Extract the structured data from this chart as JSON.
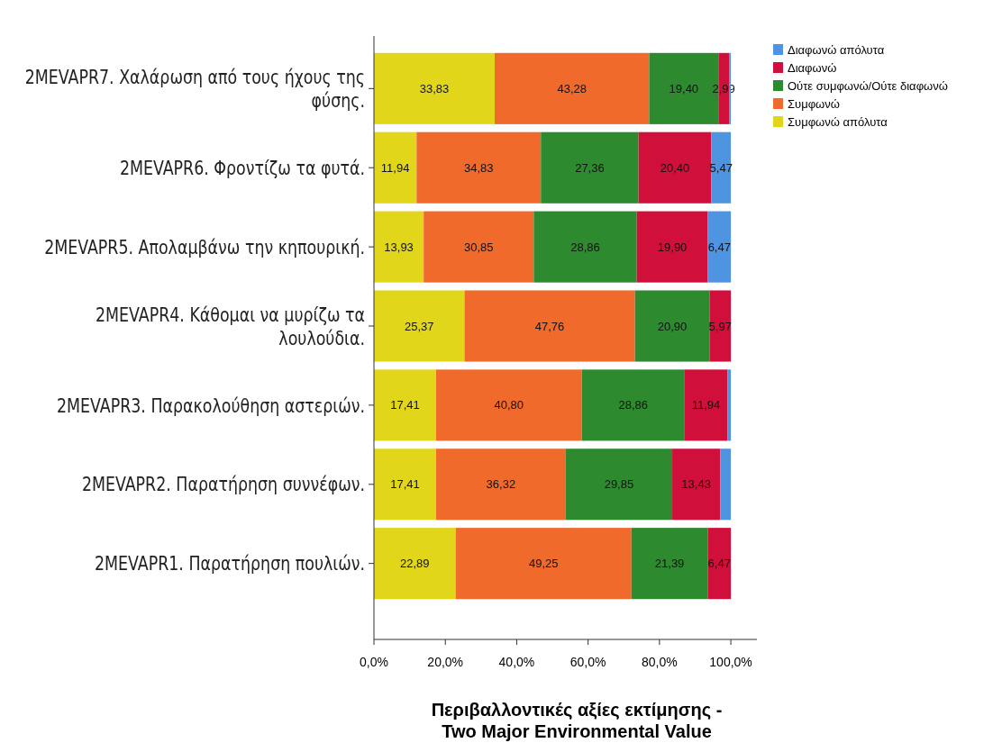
{
  "chart_data": {
    "type": "bar",
    "orientation": "horizontal",
    "stacked": true,
    "xlabel": "Περιβαλλοντικές αξίες εκτίμησης - Two Major Environmental Value",
    "categories": [
      "2MEVAPR7. Χαλάρωση από τους ήχους της φύσης.",
      "2MEVAPR6. Φροντίζω τα φυτά.",
      "2MEVAPR5. Απολαμβάνω την κηπουρική.",
      "2MEVAPR4. Κάθομαι να μυρίζω τα λουλούδια.",
      "2MEVAPR3. Παρακολούθηση αστεριών.",
      "2MEVAPR2. Παρατήρηση συννέφων.",
      "2MEVAPR1. Παρατήρηση πουλιών."
    ],
    "series": [
      {
        "name": "Συμφωνώ απόλυτα",
        "color": "#e2d61b",
        "values": [
          33.83,
          11.94,
          13.93,
          25.37,
          17.41,
          17.41,
          22.89
        ],
        "value_labels": [
          "33,83",
          "11,94",
          "13,93",
          "25,37",
          "17,41",
          "17,41",
          "22,89"
        ]
      },
      {
        "name": "Συμφωνώ",
        "color": "#f06a2c",
        "values": [
          43.28,
          34.83,
          30.85,
          47.76,
          40.8,
          36.32,
          49.25
        ],
        "value_labels": [
          "43,28",
          "34,83",
          "30,85",
          "47,76",
          "40,80",
          "36,32",
          "49,25"
        ]
      },
      {
        "name": "Ούτε συμφωνώ/Ούτε διαφωνώ",
        "color": "#2e8a2e",
        "values": [
          19.4,
          27.36,
          28.86,
          20.9,
          28.86,
          29.85,
          21.39
        ],
        "value_labels": [
          "19,40",
          "27,36",
          "28,86",
          "20,90",
          "28,86",
          "29,85",
          "21,39"
        ]
      },
      {
        "name": "Διαφωνώ",
        "color": "#d0103a",
        "values": [
          2.99,
          20.4,
          19.9,
          5.97,
          11.94,
          13.43,
          6.47
        ],
        "value_labels": [
          "2,99",
          "20,40",
          "19,90",
          "5,97",
          "11,94",
          "13,43",
          "6,47"
        ]
      },
      {
        "name": "Διαφωνώ απόλυτα",
        "color": "#4e94e0",
        "values": [
          0.5,
          5.47,
          6.47,
          0,
          1.0,
          2.99,
          0
        ],
        "value_labels": [
          null,
          "5,47",
          "6,47",
          null,
          null,
          null,
          null
        ]
      }
    ],
    "xlim": [
      0,
      107.3
    ],
    "xticks": [
      {
        "value": 0,
        "label": "0,0%"
      },
      {
        "value": 20,
        "label": "20,0%"
      },
      {
        "value": 40,
        "label": "40,0%"
      },
      {
        "value": 60,
        "label": "60,0%"
      },
      {
        "value": 80,
        "label": "80,0%"
      },
      {
        "value": 100,
        "label": "100,0%"
      }
    ],
    "grid": false,
    "legend": "top right"
  }
}
